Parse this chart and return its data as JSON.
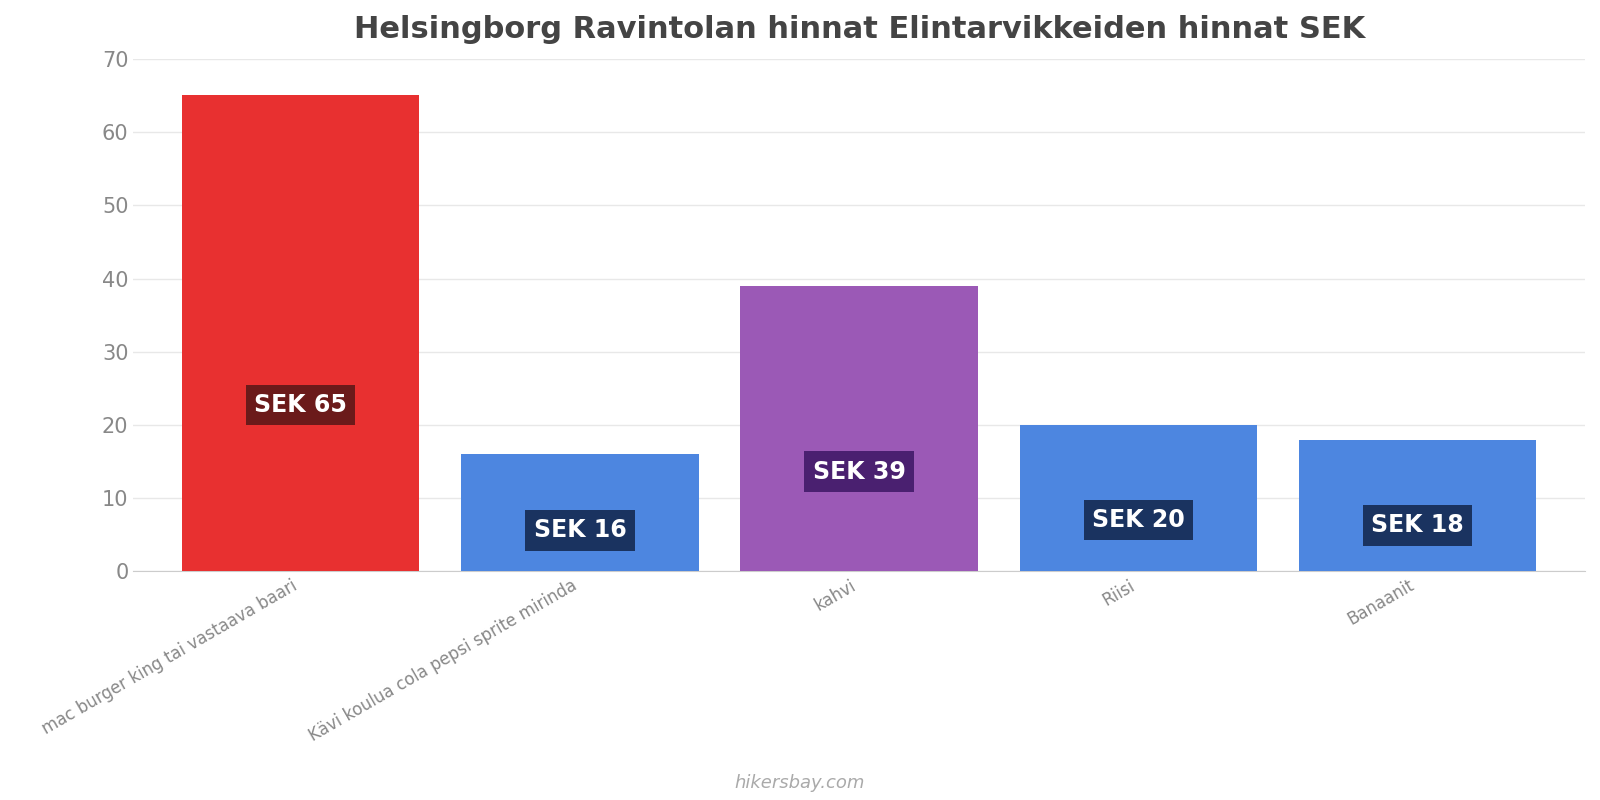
{
  "title": "Helsingborg Ravintolan hinnat Elintarvikkeiden hinnat SEK",
  "categories": [
    "mac burger king tai vastaava baari",
    "Kävi koulua cola pepsi sprite mirinda",
    "kahvi",
    "Riisi",
    "Banaanit"
  ],
  "values": [
    65,
    16,
    39,
    20,
    18
  ],
  "bar_colors": [
    "#e83030",
    "#4d86e0",
    "#9b59b6",
    "#4d86e0",
    "#4d86e0"
  ],
  "label_bg_colors": [
    "#6b1a1a",
    "#1a3360",
    "#4a2070",
    "#1a3360",
    "#1a3360"
  ],
  "ylim": [
    0,
    70
  ],
  "yticks": [
    0,
    10,
    20,
    30,
    40,
    50,
    60,
    70
  ],
  "title_fontsize": 22,
  "label_fontsize": 17,
  "tick_fontsize": 15,
  "xtick_fontsize": 12,
  "watermark": "hikersbay.com",
  "background_color": "#ffffff",
  "bar_width": 0.85
}
